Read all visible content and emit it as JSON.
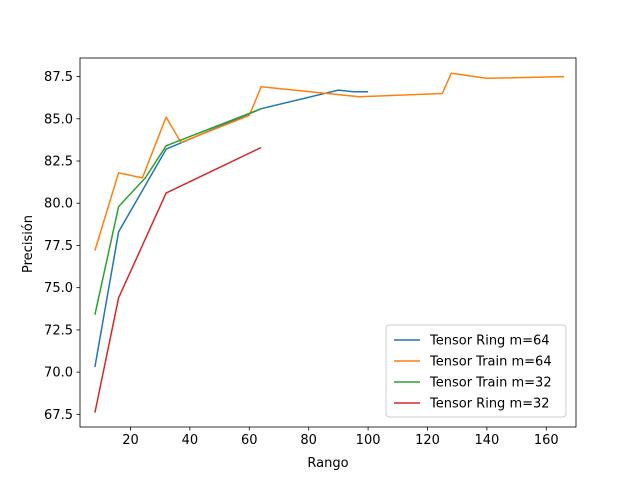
{
  "chart_data": {
    "type": "line",
    "title": "",
    "xlabel": "Rango",
    "ylabel": "Precisión",
    "xlim": [
      3,
      170
    ],
    "ylim": [
      66.75,
      88.6
    ],
    "xticks": [
      20,
      40,
      60,
      80,
      100,
      120,
      140,
      160
    ],
    "yticks": [
      67.5,
      70.0,
      72.5,
      75.0,
      77.5,
      80.0,
      82.5,
      85.0,
      87.5
    ],
    "grid": false,
    "legend_position": "lower-right",
    "series": [
      {
        "name": "Tensor Ring m=64",
        "color": "#1f77b4",
        "x": [
          8,
          16,
          32,
          64,
          90,
          95,
          100
        ],
        "y": [
          70.3,
          78.3,
          83.2,
          85.6,
          86.7,
          86.6,
          86.6
        ]
      },
      {
        "name": "Tensor Train m=64",
        "color": "#ff7f0e",
        "x": [
          8,
          16,
          24,
          32,
          37,
          60,
          64,
          97,
          125,
          128,
          136,
          140,
          166
        ],
        "y": [
          77.2,
          81.8,
          81.5,
          85.1,
          83.6,
          85.2,
          86.9,
          86.3,
          86.5,
          87.7,
          87.5,
          87.4,
          87.5
        ]
      },
      {
        "name": "Tensor Train m=32",
        "color": "#2ca02c",
        "x": [
          8,
          16,
          25,
          32,
          64
        ],
        "y": [
          73.4,
          79.8,
          81.5,
          83.4,
          85.6
        ]
      },
      {
        "name": "Tensor Ring m=32",
        "color": "#d62728",
        "x": [
          8,
          16,
          32,
          64
        ],
        "y": [
          67.6,
          74.4,
          80.6,
          83.3
        ]
      }
    ]
  }
}
